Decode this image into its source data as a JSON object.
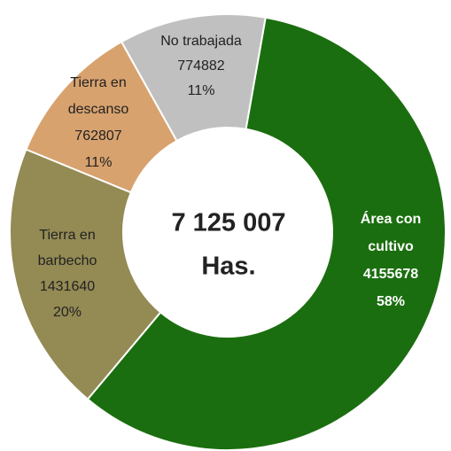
{
  "chart_data": {
    "type": "donut",
    "categories": [
      [
        "Área con",
        "cultivo"
      ],
      [
        "Tierra en",
        "barbecho"
      ],
      [
        "Tierra en",
        "descanso"
      ],
      [
        "No trabajada"
      ]
    ],
    "values": [
      4155678,
      1431640,
      762807,
      774882
    ],
    "percent_labels": [
      "58%",
      "20%",
      "11%",
      "11%"
    ],
    "colors": [
      "#1b6e0f",
      "#948a54",
      "#d8a26e",
      "#c0c0c0"
    ],
    "center_labels": [
      "7 125 007",
      "Has."
    ]
  }
}
